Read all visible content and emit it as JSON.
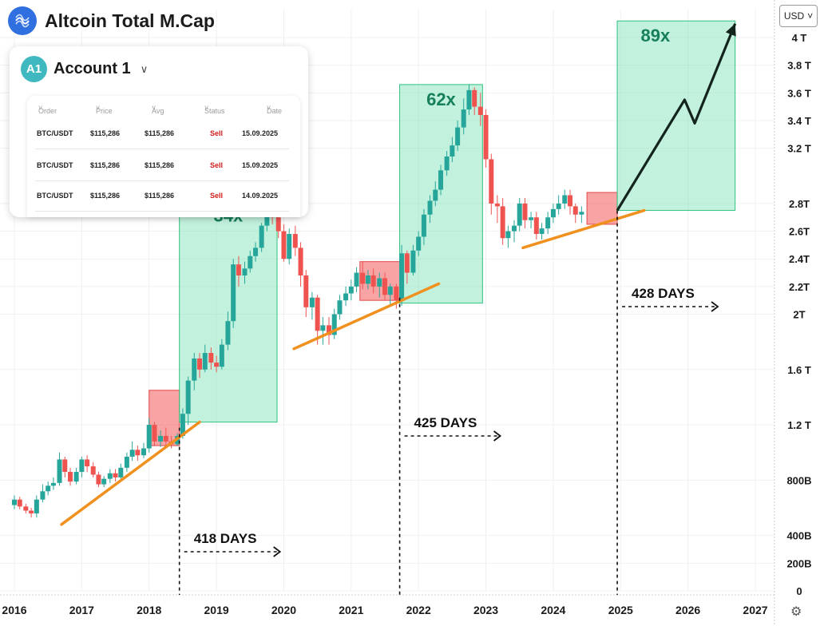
{
  "header": {
    "title": "Altcoin Total M.Cap",
    "logo_icon": "signal-waves-icon"
  },
  "currency": {
    "label": "USD",
    "icon": "chevron-down-icon"
  },
  "settings_icon": "gear-icon",
  "account_panel": {
    "avatar": "A1",
    "name": "Account 1",
    "columns": [
      "Order",
      "Price",
      "Avg",
      "Status",
      "Date"
    ],
    "rows": [
      {
        "pair": "BTC/USDT",
        "price": "$115,286",
        "avg": "$115,286",
        "status": "Sell",
        "date": "15.09.2025"
      },
      {
        "pair": "BTC/USDT",
        "price": "$115,286",
        "avg": "$115,286",
        "status": "Sell",
        "date": "15.09.2025"
      },
      {
        "pair": "BTC/USDT",
        "price": "$115,286",
        "avg": "$115,286",
        "status": "Sell",
        "date": "14.09.2025"
      }
    ]
  },
  "chart_data": {
    "type": "candlestick",
    "title": "Altcoin Total M.Cap",
    "unit": "USD",
    "x_range": [
      2016.0,
      2027.0
    ],
    "y_range": [
      0,
      4.2
    ],
    "x_ticks": [
      "2016",
      "2017",
      "2018",
      "2019",
      "2020",
      "2021",
      "2022",
      "2023",
      "2024",
      "2025",
      "2026",
      "2027"
    ],
    "y_ticks": [
      {
        "label": "4 T",
        "value": 4.0
      },
      {
        "label": "3.8 T",
        "value": 3.8
      },
      {
        "label": "3.6 T",
        "value": 3.6
      },
      {
        "label": "3.4 T",
        "value": 3.4
      },
      {
        "label": "3.2 T",
        "value": 3.2
      },
      {
        "label": "2.8T",
        "value": 2.8
      },
      {
        "label": "2.6T",
        "value": 2.6
      },
      {
        "label": "2.4T",
        "value": 2.4
      },
      {
        "label": "2.2T",
        "value": 2.2
      },
      {
        "label": "2T",
        "value": 2.0
      },
      {
        "label": "1.6 T",
        "value": 1.6
      },
      {
        "label": "1.2 T",
        "value": 1.2
      },
      {
        "label": "800B",
        "value": 0.8
      },
      {
        "label": "400B",
        "value": 0.4
      },
      {
        "label": "200B",
        "value": 0.2
      },
      {
        "label": "0",
        "value": 0.0
      }
    ],
    "colors": {
      "up": "#26a69a",
      "down": "#ef5350",
      "box": "#8ee6c0",
      "box_red": "#f26b6b",
      "trend": "#f0901e"
    },
    "candles": [
      [
        2016.0,
        0.62,
        0.66,
        0.59,
        0.69
      ],
      [
        2016.08,
        0.66,
        0.61,
        0.59,
        0.68
      ],
      [
        2016.17,
        0.61,
        0.58,
        0.56,
        0.63
      ],
      [
        2016.25,
        0.58,
        0.56,
        0.53,
        0.6
      ],
      [
        2016.33,
        0.56,
        0.66,
        0.53,
        0.69
      ],
      [
        2016.42,
        0.66,
        0.72,
        0.64,
        0.77
      ],
      [
        2016.5,
        0.72,
        0.76,
        0.69,
        0.79
      ],
      [
        2016.58,
        0.76,
        0.78,
        0.73,
        0.82
      ],
      [
        2016.67,
        0.78,
        0.95,
        0.76,
        1.0
      ],
      [
        2016.75,
        0.95,
        0.86,
        0.82,
        0.97
      ],
      [
        2016.83,
        0.86,
        0.79,
        0.76,
        0.89
      ],
      [
        2016.92,
        0.79,
        0.86,
        0.77,
        0.89
      ],
      [
        2017.0,
        0.86,
        0.95,
        0.82,
        0.97
      ],
      [
        2017.08,
        0.95,
        0.9,
        0.86,
        0.98
      ],
      [
        2017.17,
        0.9,
        0.84,
        0.82,
        0.93
      ],
      [
        2017.25,
        0.84,
        0.77,
        0.75,
        0.86
      ],
      [
        2017.33,
        0.77,
        0.81,
        0.75,
        0.83
      ],
      [
        2017.42,
        0.81,
        0.85,
        0.78,
        0.88
      ],
      [
        2017.5,
        0.85,
        0.82,
        0.79,
        0.88
      ],
      [
        2017.58,
        0.82,
        0.89,
        0.8,
        0.92
      ],
      [
        2017.67,
        0.89,
        0.97,
        0.86,
        1.0
      ],
      [
        2017.75,
        0.97,
        1.02,
        0.94,
        1.08
      ],
      [
        2017.83,
        1.02,
        0.98,
        0.94,
        1.05
      ],
      [
        2017.92,
        0.98,
        1.03,
        0.96,
        1.07
      ],
      [
        2018.0,
        1.03,
        1.2,
        1.0,
        1.25
      ],
      [
        2018.08,
        1.2,
        1.08,
        1.05,
        1.22
      ],
      [
        2018.17,
        1.08,
        1.12,
        1.04,
        1.16
      ],
      [
        2018.25,
        1.12,
        1.08,
        1.04,
        1.18
      ],
      [
        2018.33,
        1.08,
        1.06,
        1.03,
        1.12
      ],
      [
        2018.42,
        1.06,
        1.12,
        1.05,
        1.14
      ],
      [
        2018.5,
        1.12,
        1.28,
        1.1,
        1.32
      ],
      [
        2018.58,
        1.28,
        1.52,
        1.2,
        1.55
      ],
      [
        2018.67,
        1.52,
        1.68,
        1.45,
        1.72
      ],
      [
        2018.75,
        1.68,
        1.6,
        1.54,
        1.72
      ],
      [
        2018.83,
        1.6,
        1.72,
        1.58,
        1.78
      ],
      [
        2018.92,
        1.72,
        1.65,
        1.6,
        1.76
      ],
      [
        2019.0,
        1.65,
        1.62,
        1.58,
        1.7
      ],
      [
        2019.08,
        1.62,
        1.78,
        1.6,
        1.82
      ],
      [
        2019.17,
        1.78,
        1.95,
        1.74,
        2.02
      ],
      [
        2019.25,
        1.95,
        2.36,
        1.9,
        2.4
      ],
      [
        2019.33,
        2.36,
        2.28,
        2.2,
        2.42
      ],
      [
        2019.42,
        2.28,
        2.33,
        2.22,
        2.38
      ],
      [
        2019.5,
        2.33,
        2.42,
        2.3,
        2.46
      ],
      [
        2019.58,
        2.42,
        2.48,
        2.38,
        2.52
      ],
      [
        2019.67,
        2.48,
        2.64,
        2.45,
        2.66
      ],
      [
        2019.75,
        2.64,
        2.78,
        2.6,
        2.82
      ],
      [
        2019.83,
        2.78,
        2.7,
        2.65,
        2.82
      ],
      [
        2019.92,
        2.7,
        2.6,
        2.55,
        2.78
      ],
      [
        2020.0,
        2.6,
        2.4,
        2.38,
        2.65
      ],
      [
        2020.08,
        2.4,
        2.58,
        2.36,
        2.62
      ],
      [
        2020.17,
        2.58,
        2.48,
        2.42,
        2.64
      ],
      [
        2020.25,
        2.48,
        2.28,
        2.2,
        2.52
      ],
      [
        2020.33,
        2.28,
        2.05,
        1.98,
        2.32
      ],
      [
        2020.42,
        2.05,
        2.12,
        1.96,
        2.16
      ],
      [
        2020.5,
        2.12,
        1.88,
        1.78,
        2.14
      ],
      [
        2020.58,
        1.88,
        1.92,
        1.78,
        1.98
      ],
      [
        2020.67,
        1.92,
        1.85,
        1.78,
        1.98
      ],
      [
        2020.75,
        1.85,
        2.0,
        1.82,
        2.04
      ],
      [
        2020.83,
        2.0,
        2.1,
        1.96,
        2.14
      ],
      [
        2020.92,
        2.1,
        2.15,
        2.06,
        2.2
      ],
      [
        2021.0,
        2.15,
        2.2,
        2.1,
        2.25
      ],
      [
        2021.08,
        2.2,
        2.3,
        2.16,
        2.34
      ],
      [
        2021.17,
        2.3,
        2.22,
        2.18,
        2.38
      ],
      [
        2021.25,
        2.22,
        2.28,
        2.18,
        2.32
      ],
      [
        2021.33,
        2.28,
        2.2,
        2.15,
        2.33
      ],
      [
        2021.42,
        2.2,
        2.26,
        2.12,
        2.3
      ],
      [
        2021.5,
        2.26,
        2.14,
        2.1,
        2.3
      ],
      [
        2021.58,
        2.14,
        2.2,
        2.06,
        2.22
      ],
      [
        2021.67,
        2.2,
        2.1,
        2.04,
        2.22
      ],
      [
        2021.75,
        2.1,
        2.44,
        2.06,
        2.5
      ],
      [
        2021.83,
        2.44,
        2.3,
        2.22,
        2.46
      ],
      [
        2021.92,
        2.3,
        2.46,
        2.28,
        2.5
      ],
      [
        2022.0,
        2.46,
        2.56,
        2.42,
        2.6
      ],
      [
        2022.08,
        2.56,
        2.72,
        2.5,
        2.76
      ],
      [
        2022.17,
        2.72,
        2.82,
        2.66,
        2.86
      ],
      [
        2022.25,
        2.82,
        2.9,
        2.78,
        2.96
      ],
      [
        2022.33,
        2.9,
        3.04,
        2.86,
        3.08
      ],
      [
        2022.42,
        3.04,
        3.14,
        3.0,
        3.18
      ],
      [
        2022.5,
        3.14,
        3.22,
        3.1,
        3.28
      ],
      [
        2022.58,
        3.22,
        3.35,
        3.18,
        3.4
      ],
      [
        2022.67,
        3.35,
        3.48,
        3.3,
        3.56
      ],
      [
        2022.75,
        3.48,
        3.62,
        3.44,
        3.66
      ],
      [
        2022.83,
        3.62,
        3.5,
        3.44,
        3.64
      ],
      [
        2022.92,
        3.5,
        3.44,
        3.36,
        3.6
      ],
      [
        2023.0,
        3.44,
        3.12,
        3.06,
        3.48
      ],
      [
        2023.08,
        3.12,
        2.8,
        2.72,
        3.16
      ],
      [
        2023.17,
        2.8,
        2.78,
        2.66,
        2.86
      ],
      [
        2023.25,
        2.78,
        2.55,
        2.5,
        2.84
      ],
      [
        2023.33,
        2.55,
        2.6,
        2.48,
        2.64
      ],
      [
        2023.42,
        2.6,
        2.64,
        2.52,
        2.68
      ],
      [
        2023.5,
        2.64,
        2.8,
        2.6,
        2.84
      ],
      [
        2023.58,
        2.8,
        2.68,
        2.62,
        2.84
      ],
      [
        2023.67,
        2.68,
        2.7,
        2.62,
        2.74
      ],
      [
        2023.75,
        2.7,
        2.58,
        2.54,
        2.74
      ],
      [
        2023.83,
        2.58,
        2.62,
        2.54,
        2.66
      ],
      [
        2023.92,
        2.62,
        2.7,
        2.58,
        2.74
      ],
      [
        2024.0,
        2.7,
        2.76,
        2.66,
        2.8
      ],
      [
        2024.08,
        2.76,
        2.8,
        2.72,
        2.86
      ],
      [
        2024.17,
        2.8,
        2.86,
        2.76,
        2.9
      ],
      [
        2024.25,
        2.86,
        2.78,
        2.72,
        2.9
      ],
      [
        2024.33,
        2.78,
        2.72,
        2.66,
        2.8
      ],
      [
        2024.42,
        2.72,
        2.74,
        2.66,
        2.78
      ]
    ],
    "boxes": [
      {
        "kind": "red",
        "x0": 2018.0,
        "x1": 2018.45,
        "y0": 1.05,
        "y1": 1.45
      },
      {
        "kind": "green",
        "x0": 2018.45,
        "x1": 2019.9,
        "y0": 1.22,
        "y1": 2.82,
        "label": "34x"
      },
      {
        "kind": "red",
        "x0": 2021.13,
        "x1": 2021.72,
        "y0": 2.1,
        "y1": 2.38
      },
      {
        "kind": "green",
        "x0": 2021.72,
        "x1": 2022.95,
        "y0": 2.08,
        "y1": 3.66,
        "label": "62x"
      },
      {
        "kind": "red",
        "x0": 2024.5,
        "x1": 2024.95,
        "y0": 2.65,
        "y1": 2.88
      },
      {
        "kind": "green",
        "x0": 2024.95,
        "x1": 2026.7,
        "y0": 2.75,
        "y1": 4.12,
        "label": "89x"
      }
    ],
    "trendlines": [
      {
        "x0": 2016.7,
        "y0": 0.48,
        "x1": 2018.75,
        "y1": 1.22
      },
      {
        "x0": 2020.15,
        "y0": 1.75,
        "x1": 2022.3,
        "y1": 2.22
      },
      {
        "x0": 2023.55,
        "y0": 2.48,
        "x1": 2025.35,
        "y1": 2.75
      }
    ],
    "projection": [
      [
        2024.95,
        2.75
      ],
      [
        2025.95,
        3.55
      ],
      [
        2026.1,
        3.38
      ],
      [
        2026.7,
        4.1
      ]
    ],
    "cycles": [
      {
        "x": 2018.45,
        "label": "418 DAYS"
      },
      {
        "x": 2021.72,
        "label": "425 DAYS"
      },
      {
        "x": 2024.95,
        "label": "428 DAYS"
      }
    ]
  }
}
